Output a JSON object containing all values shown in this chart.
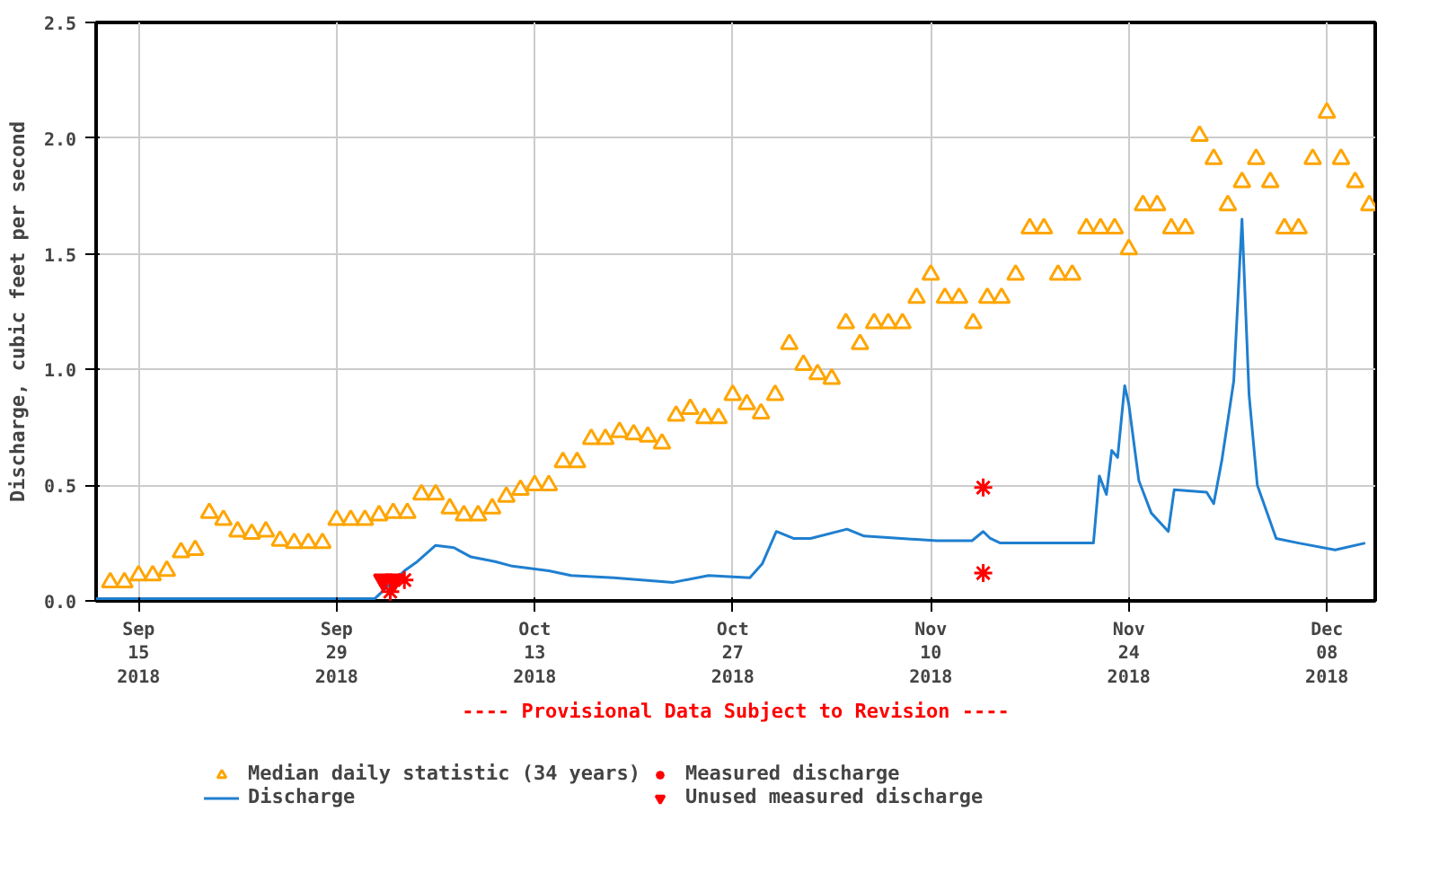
{
  "chart_data": {
    "type": "line",
    "ylabel": "Discharge, cubic feet per second",
    "annotations": [
      "---- Provisional Data Subject to Revision ----"
    ],
    "xlim": [
      "2018-09-12",
      "2018-12-11T10:00"
    ],
    "ylim": [
      0,
      2.5
    ],
    "xticks": [
      {
        "value": "2018-09-15",
        "label": "Sep\n15\n2018"
      },
      {
        "value": "2018-09-29",
        "label": "Sep\n29\n2018"
      },
      {
        "value": "2018-10-13",
        "label": "Oct\n13\n2018"
      },
      {
        "value": "2018-10-27",
        "label": "Oct\n27\n2018"
      },
      {
        "value": "2018-11-10",
        "label": "Nov\n10\n2018"
      },
      {
        "value": "2018-11-24",
        "label": "Nov\n24\n2018"
      },
      {
        "value": "2018-12-08",
        "label": "Dec\n08\n2018"
      }
    ],
    "yticks": [
      {
        "value": 0,
        "label": "0.0"
      },
      0.5,
      {
        "value": 1,
        "label": "1.0"
      },
      1.5,
      {
        "value": 2,
        "label": "2.0"
      },
      2.5
    ],
    "grid": true,
    "legend": "bottom",
    "series": [
      {
        "name": "Median daily statistic (34 years)",
        "type": "scatter",
        "marker": "triangle",
        "color": "#ffa500",
        "x": [
          "2018-09-13",
          "2018-09-14",
          "2018-09-15",
          "2018-09-16",
          "2018-09-17",
          "2018-09-18",
          "2018-09-19",
          "2018-09-20",
          "2018-09-21",
          "2018-09-22",
          "2018-09-23",
          "2018-09-24",
          "2018-09-25",
          "2018-09-26",
          "2018-09-27",
          "2018-09-28",
          "2018-09-29",
          "2018-09-30",
          "2018-10-01",
          "2018-10-02",
          "2018-10-03",
          "2018-10-04",
          "2018-10-05",
          "2018-10-06",
          "2018-10-07",
          "2018-10-08",
          "2018-10-09",
          "2018-10-10",
          "2018-10-11",
          "2018-10-12",
          "2018-10-13",
          "2018-10-14",
          "2018-10-15",
          "2018-10-16",
          "2018-10-17",
          "2018-10-18",
          "2018-10-19",
          "2018-10-20",
          "2018-10-21",
          "2018-10-22",
          "2018-10-23",
          "2018-10-24",
          "2018-10-25",
          "2018-10-26",
          "2018-10-27",
          "2018-10-28",
          "2018-10-29",
          "2018-10-30",
          "2018-10-31",
          "2018-11-01",
          "2018-11-02",
          "2018-11-03",
          "2018-11-04",
          "2018-11-05",
          "2018-11-06",
          "2018-11-07",
          "2018-11-08",
          "2018-11-09",
          "2018-11-10",
          "2018-11-11",
          "2018-11-12",
          "2018-11-13",
          "2018-11-14",
          "2018-11-15",
          "2018-11-16",
          "2018-11-17",
          "2018-11-18",
          "2018-11-19",
          "2018-11-20",
          "2018-11-21",
          "2018-11-22",
          "2018-11-23",
          "2018-11-24",
          "2018-11-25",
          "2018-11-26",
          "2018-11-27",
          "2018-11-28",
          "2018-11-29",
          "2018-11-30",
          "2018-12-01",
          "2018-12-02",
          "2018-12-03",
          "2018-12-04",
          "2018-12-05",
          "2018-12-06",
          "2018-12-07",
          "2018-12-08",
          "2018-12-09",
          "2018-12-10",
          "2018-12-11"
        ],
        "values": [
          0.08,
          0.08,
          0.11,
          0.11,
          0.13,
          0.21,
          0.22,
          0.38,
          0.35,
          0.3,
          0.29,
          0.3,
          0.26,
          0.25,
          0.25,
          0.25,
          0.35,
          0.35,
          0.35,
          0.37,
          0.38,
          0.38,
          0.46,
          0.46,
          0.4,
          0.37,
          0.37,
          0.4,
          0.45,
          0.48,
          0.5,
          0.5,
          0.6,
          0.6,
          0.7,
          0.7,
          0.73,
          0.72,
          0.71,
          0.68,
          0.8,
          0.83,
          0.79,
          0.79,
          0.89,
          0.85,
          0.81,
          0.89,
          1.11,
          1.02,
          0.98,
          0.96,
          1.2,
          1.11,
          1.2,
          1.2,
          1.2,
          1.31,
          1.41,
          1.31,
          1.31,
          1.2,
          1.31,
          1.31,
          1.41,
          1.61,
          1.61,
          1.41,
          1.41,
          1.61,
          1.61,
          1.61,
          1.52,
          1.71,
          1.71,
          1.61,
          1.61,
          2.01,
          1.91,
          1.71,
          1.81,
          1.91,
          1.81,
          1.61,
          1.61,
          1.91,
          2.11,
          1.91,
          1.81,
          1.71
        ]
      },
      {
        "name": "Discharge",
        "type": "line",
        "color": "#1f7fd0",
        "x": [
          "2018-09-12",
          "2018-10-01T17:00",
          "2018-10-03T02:00",
          "2018-10-03T19:00",
          "2018-10-04T17:00",
          "2018-10-06",
          "2018-10-07T07:00",
          "2018-10-08T12:00",
          "2018-10-10T05:00",
          "2018-10-11T10:00",
          "2018-10-14",
          "2018-10-15T14:00",
          "2018-10-18T14:00",
          "2018-10-22T19:00",
          "2018-10-25T07:00",
          "2018-10-28T05:00",
          "2018-10-29T02:00",
          "2018-10-30T02:00",
          "2018-10-31T07:00",
          "2018-11-01T12:00",
          "2018-11-04T02:00",
          "2018-11-05T07:00",
          "2018-11-07T22:00",
          "2018-11-10T10:00",
          "2018-11-12T22:00",
          "2018-11-13T17:00",
          "2018-11-14T05:00",
          "2018-11-14T22:00",
          "2018-11-21T12:00",
          "2018-11-21T22:00",
          "2018-11-22T10:00",
          "2018-11-22T19:00",
          "2018-11-23T05:00",
          "2018-11-23T17:00",
          "2018-11-24",
          "2018-11-24T17:00",
          "2018-11-25T14:00",
          "2018-11-26T19:00",
          "2018-11-27T05:00",
          "2018-11-29T12:00",
          "2018-11-30",
          "2018-11-30T14:00",
          "2018-12-01T10:00",
          "2018-12-02",
          "2018-12-02T12:00",
          "2018-12-03T02:00",
          "2018-12-04T10:00",
          "2018-12-06",
          "2018-12-08T14:00",
          "2018-12-10T17:00"
        ],
        "values": [
          0.01,
          0.01,
          0.09,
          0.13,
          0.17,
          0.24,
          0.23,
          0.19,
          0.17,
          0.15,
          0.13,
          0.11,
          0.1,
          0.08,
          0.11,
          0.1,
          0.16,
          0.3,
          0.27,
          0.27,
          0.31,
          0.28,
          0.27,
          0.26,
          0.26,
          0.3,
          0.27,
          0.25,
          0.25,
          0.54,
          0.46,
          0.65,
          0.62,
          0.93,
          0.85,
          0.52,
          0.38,
          0.3,
          0.48,
          0.47,
          0.42,
          0.61,
          0.95,
          1.65,
          0.89,
          0.5,
          0.27,
          0.25,
          0.22,
          0.25
        ]
      },
      {
        "name": "Measured discharge",
        "type": "scatter",
        "marker": "cross",
        "color": "#ff0000",
        "x": [
          "2018-10-02T19:00",
          "2018-10-03T19:00",
          "2018-11-13T17:00",
          "2018-11-13T17:00"
        ],
        "values": [
          0.04,
          0.09,
          0.49,
          0.12
        ]
      },
      {
        "name": "Unused measured discharge",
        "type": "scatter",
        "color": "#ff0000",
        "x": [
          "2018-10-02T07:00",
          "2018-10-03T02:00"
        ],
        "values": [
          0.09,
          0.09
        ]
      }
    ]
  }
}
